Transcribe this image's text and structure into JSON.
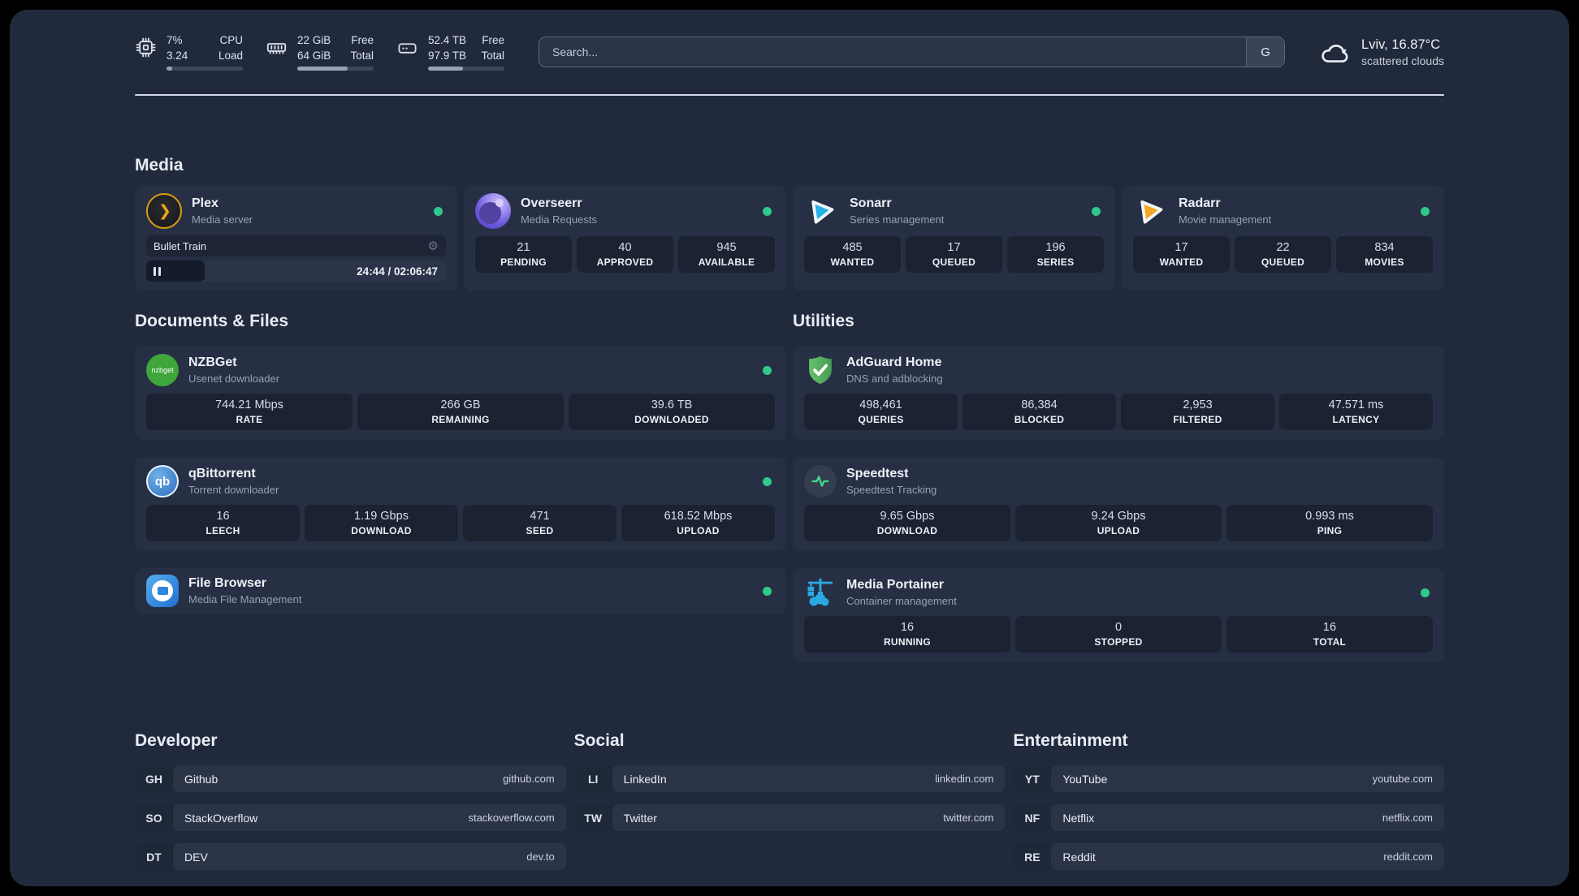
{
  "colors": {
    "accent_green": "#2fc98b",
    "page_bg": "#212a3c",
    "card_bg": "#262f44"
  },
  "topbar": {
    "stats": [
      {
        "icon": "cpu-icon",
        "value_top": "7%",
        "value_bottom": "3.24",
        "label_top": "CPU",
        "label_bottom": "Load",
        "bar_percent": 7
      },
      {
        "icon": "ram-icon",
        "value_top": "22 GiB",
        "value_bottom": "64 GiB",
        "label_top": "Free",
        "label_bottom": "Total",
        "bar_percent": 66
      },
      {
        "icon": "disk-icon",
        "value_top": "52.4 TB",
        "value_bottom": "97.9 TB",
        "label_top": "Free",
        "label_bottom": "Total",
        "bar_percent": 46
      }
    ],
    "search": {
      "placeholder": "Search...",
      "engine_label": "G"
    },
    "weather": {
      "title": "Lviv, 16.87°C",
      "subtitle": "scattered clouds"
    }
  },
  "sections": {
    "media": {
      "title": "Media",
      "plex": {
        "name": "Plex",
        "subtitle": "Media server",
        "now_playing": "Bullet Train",
        "elapsed_total": "24:44 / 02:06:47",
        "progress_percent": 19.5,
        "glyph": "❯"
      },
      "overseerr": {
        "name": "Overseerr",
        "subtitle": "Media Requests",
        "stats": [
          {
            "value": "21",
            "label": "PENDING"
          },
          {
            "value": "40",
            "label": "APPROVED"
          },
          {
            "value": "945",
            "label": "AVAILABLE"
          }
        ]
      },
      "sonarr": {
        "name": "Sonarr",
        "subtitle": "Series management",
        "stats": [
          {
            "value": "485",
            "label": "WANTED"
          },
          {
            "value": "17",
            "label": "QUEUED"
          },
          {
            "value": "196",
            "label": "SERIES"
          }
        ]
      },
      "radarr": {
        "name": "Radarr",
        "subtitle": "Movie management",
        "stats": [
          {
            "value": "17",
            "label": "WANTED"
          },
          {
            "value": "22",
            "label": "QUEUED"
          },
          {
            "value": "834",
            "label": "MOVIES"
          }
        ]
      }
    },
    "documents": {
      "title": "Documents & Files",
      "nzbget": {
        "name": "NZBGet",
        "subtitle": "Usenet downloader",
        "logo_text": "nzbget",
        "stats": [
          {
            "value": "744.21 Mbps",
            "label": "RATE"
          },
          {
            "value": "266 GB",
            "label": "REMAINING"
          },
          {
            "value": "39.6 TB",
            "label": "DOWNLOADED"
          }
        ]
      },
      "qbittorrent": {
        "name": "qBittorrent",
        "subtitle": "Torrent downloader",
        "logo_text": "qb",
        "stats": [
          {
            "value": "16",
            "label": "LEECH"
          },
          {
            "value": "1.19 Gbps",
            "label": "DOWNLOAD"
          },
          {
            "value": "471",
            "label": "SEED"
          },
          {
            "value": "618.52 Mbps",
            "label": "UPLOAD"
          }
        ]
      },
      "filebrowser": {
        "name": "File Browser",
        "subtitle": "Media File Management"
      }
    },
    "utilities": {
      "title": "Utilities",
      "adguard": {
        "name": "AdGuard Home",
        "subtitle": "DNS and adblocking",
        "stats": [
          {
            "value": "498,461",
            "label": "QUERIES"
          },
          {
            "value": "86,384",
            "label": "BLOCKED"
          },
          {
            "value": "2,953",
            "label": "FILTERED"
          },
          {
            "value": "47.571 ms",
            "label": "LATENCY"
          }
        ]
      },
      "speedtest": {
        "name": "Speedtest",
        "subtitle": "Speedtest Tracking",
        "stats": [
          {
            "value": "9.65 Gbps",
            "label": "DOWNLOAD"
          },
          {
            "value": "9.24 Gbps",
            "label": "UPLOAD"
          },
          {
            "value": "0.993 ms",
            "label": "PING"
          }
        ]
      },
      "portainer": {
        "name": "Media Portainer",
        "subtitle": "Container management",
        "stats": [
          {
            "value": "16",
            "label": "RUNNING"
          },
          {
            "value": "0",
            "label": "STOPPED"
          },
          {
            "value": "16",
            "label": "TOTAL"
          }
        ]
      }
    },
    "links": {
      "developer": {
        "title": "Developer",
        "items": [
          {
            "badge": "GH",
            "name": "Github",
            "url": "github.com"
          },
          {
            "badge": "SO",
            "name": "StackOverflow",
            "url": "stackoverflow.com"
          },
          {
            "badge": "DT",
            "name": "DEV",
            "url": "dev.to"
          }
        ]
      },
      "social": {
        "title": "Social",
        "items": [
          {
            "badge": "LI",
            "name": "LinkedIn",
            "url": "linkedin.com"
          },
          {
            "badge": "TW",
            "name": "Twitter",
            "url": "twitter.com"
          }
        ]
      },
      "entertainment": {
        "title": "Entertainment",
        "items": [
          {
            "badge": "YT",
            "name": "YouTube",
            "url": "youtube.com"
          },
          {
            "badge": "NF",
            "name": "Netflix",
            "url": "netflix.com"
          },
          {
            "badge": "RE",
            "name": "Reddit",
            "url": "reddit.com"
          }
        ]
      }
    }
  }
}
